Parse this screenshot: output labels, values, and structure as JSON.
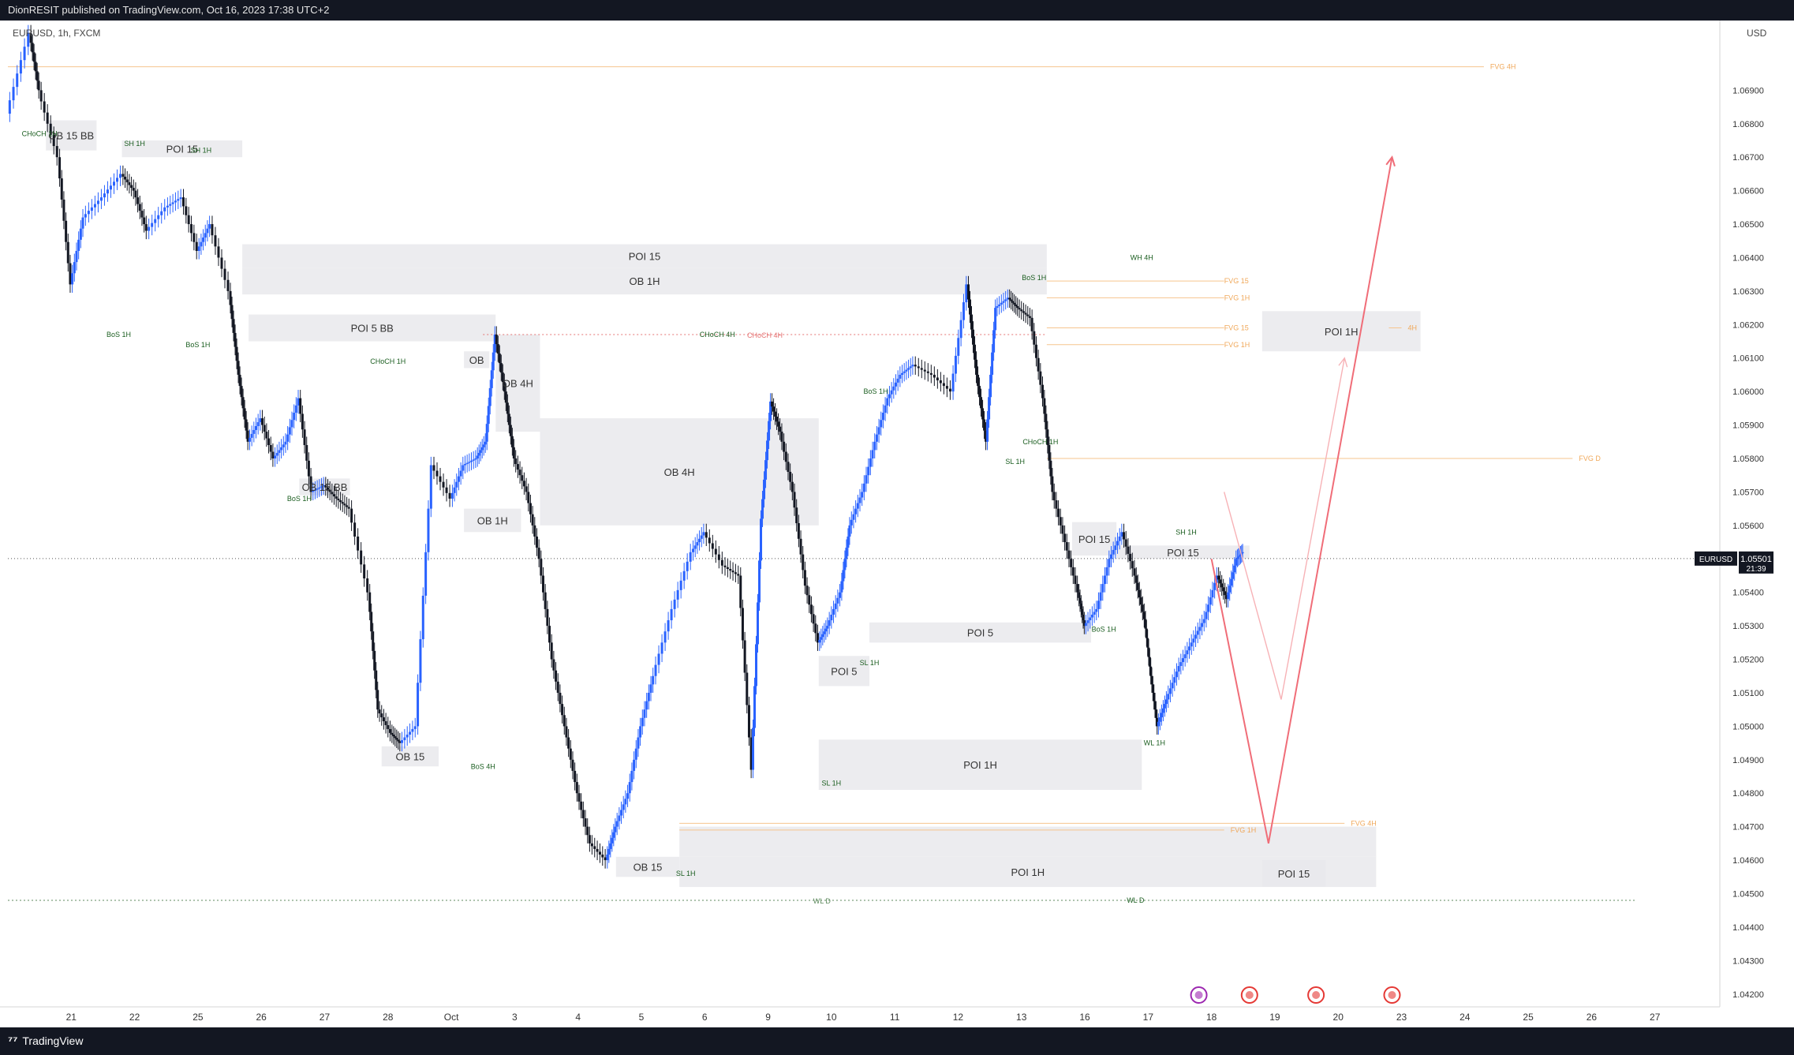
{
  "header": {
    "publish_text": "DionRESIT published on TradingView.com, Oct 16, 2023 17:38 UTC+2"
  },
  "footer": {
    "brand": "TradingView"
  },
  "chart_data": {
    "type": "candlestick",
    "symbol_label": "EURUSD, 1h, FXCM",
    "currency": "USD",
    "last_price": {
      "label": "EURUSD",
      "value": "1.05501",
      "countdown": "21:39"
    },
    "ylim": [
      1.0419,
      1.0708
    ],
    "y_ticks": [
      "1.06900",
      "1.06800",
      "1.06700",
      "1.06600",
      "1.06500",
      "1.06400",
      "1.06300",
      "1.06200",
      "1.06100",
      "1.06000",
      "1.05900",
      "1.05800",
      "1.05700",
      "1.05600",
      "1.05500",
      "1.05400",
      "1.05300",
      "1.05200",
      "1.05100",
      "1.05000",
      "1.04900",
      "1.04800",
      "1.04700",
      "1.04600",
      "1.04500",
      "1.04400",
      "1.04300",
      "1.04200"
    ],
    "xlim": [
      0,
      27
    ],
    "x_ticks": [
      {
        "i": 1,
        "label": "21"
      },
      {
        "i": 2,
        "label": "22"
      },
      {
        "i": 3,
        "label": "25"
      },
      {
        "i": 4,
        "label": "26"
      },
      {
        "i": 5,
        "label": "27"
      },
      {
        "i": 6,
        "label": "28"
      },
      {
        "i": 7,
        "label": "Oct"
      },
      {
        "i": 8,
        "label": "3"
      },
      {
        "i": 9,
        "label": "4"
      },
      {
        "i": 10,
        "label": "5"
      },
      {
        "i": 11,
        "label": "6"
      },
      {
        "i": 12,
        "label": "9"
      },
      {
        "i": 13,
        "label": "10"
      },
      {
        "i": 14,
        "label": "11"
      },
      {
        "i": 15,
        "label": "12"
      },
      {
        "i": 16,
        "label": "13"
      },
      {
        "i": 17,
        "label": "16"
      },
      {
        "i": 18,
        "label": "17"
      },
      {
        "i": 19,
        "label": "18"
      },
      {
        "i": 20,
        "label": "19"
      },
      {
        "i": 21,
        "label": "20"
      },
      {
        "i": 22,
        "label": "23"
      },
      {
        "i": 23,
        "label": "24"
      },
      {
        "i": 24,
        "label": "25"
      },
      {
        "i": 25,
        "label": "26"
      },
      {
        "i": 26,
        "label": "27"
      }
    ],
    "price_path": [
      [
        0.0,
        1.0683
      ],
      [
        0.35,
        1.0707
      ],
      [
        0.5,
        1.069
      ],
      [
        0.8,
        1.067
      ],
      [
        1.0,
        1.0632
      ],
      [
        1.2,
        1.0652
      ],
      [
        1.5,
        1.0658
      ],
      [
        1.8,
        1.0665
      ],
      [
        2.0,
        1.066
      ],
      [
        2.2,
        1.0648
      ],
      [
        2.5,
        1.0655
      ],
      [
        2.75,
        1.0658
      ],
      [
        3.0,
        1.0642
      ],
      [
        3.2,
        1.065
      ],
      [
        3.5,
        1.063
      ],
      [
        3.65,
        1.0605
      ],
      [
        3.8,
        1.0585
      ],
      [
        4.0,
        1.0592
      ],
      [
        4.2,
        1.058
      ],
      [
        4.4,
        1.0585
      ],
      [
        4.6,
        1.0598
      ],
      [
        4.8,
        1.057
      ],
      [
        5.0,
        1.0572
      ],
      [
        5.2,
        1.0568
      ],
      [
        5.4,
        1.0565
      ],
      [
        5.7,
        1.054
      ],
      [
        5.85,
        1.0505
      ],
      [
        6.05,
        1.0498
      ],
      [
        6.2,
        1.0495
      ],
      [
        6.45,
        1.05
      ],
      [
        6.7,
        1.0578
      ],
      [
        7.0,
        1.0568
      ],
      [
        7.2,
        1.0578
      ],
      [
        7.4,
        1.058
      ],
      [
        7.55,
        1.0585
      ],
      [
        7.7,
        1.0617
      ],
      [
        7.85,
        1.06
      ],
      [
        8.0,
        1.058
      ],
      [
        8.2,
        1.057
      ],
      [
        8.4,
        1.055
      ],
      [
        8.6,
        1.052
      ],
      [
        8.8,
        1.05
      ],
      [
        9.0,
        1.048
      ],
      [
        9.2,
        1.0465
      ],
      [
        9.45,
        1.046
      ],
      [
        9.6,
        1.047
      ],
      [
        9.8,
        1.048
      ],
      [
        10.0,
        1.05
      ],
      [
        10.2,
        1.0515
      ],
      [
        10.5,
        1.0535
      ],
      [
        10.8,
        1.0552
      ],
      [
        11.0,
        1.0558
      ],
      [
        11.3,
        1.0548
      ],
      [
        11.55,
        1.0545
      ],
      [
        11.75,
        1.0487
      ],
      [
        11.9,
        1.0562
      ],
      [
        12.05,
        1.0597
      ],
      [
        12.2,
        1.0588
      ],
      [
        12.4,
        1.057
      ],
      [
        12.6,
        1.0542
      ],
      [
        12.8,
        1.0525
      ],
      [
        12.95,
        1.053
      ],
      [
        13.15,
        1.054
      ],
      [
        13.3,
        1.056
      ],
      [
        13.5,
        1.057
      ],
      [
        13.7,
        1.0585
      ],
      [
        13.9,
        1.0598
      ],
      [
        14.1,
        1.0605
      ],
      [
        14.3,
        1.0608
      ],
      [
        14.6,
        1.0605
      ],
      [
        14.9,
        1.06
      ],
      [
        15.15,
        1.0632
      ],
      [
        15.3,
        1.0605
      ],
      [
        15.45,
        1.0585
      ],
      [
        15.6,
        1.0625
      ],
      [
        15.8,
        1.0628
      ],
      [
        15.95,
        1.0625
      ],
      [
        16.15,
        1.0622
      ],
      [
        16.35,
        1.0598
      ],
      [
        16.5,
        1.057
      ],
      [
        16.7,
        1.0555
      ],
      [
        16.9,
        1.054
      ],
      [
        17.0,
        1.053
      ],
      [
        17.2,
        1.0535
      ],
      [
        17.4,
        1.055
      ],
      [
        17.6,
        1.0558
      ],
      [
        17.8,
        1.0545
      ],
      [
        17.95,
        1.0532
      ],
      [
        18.05,
        1.0515
      ],
      [
        18.15,
        1.05
      ],
      [
        18.3,
        1.0508
      ],
      [
        18.5,
        1.0518
      ],
      [
        18.7,
        1.0525
      ],
      [
        18.9,
        1.0532
      ],
      [
        19.1,
        1.0545
      ],
      [
        19.25,
        1.0538
      ],
      [
        19.4,
        1.055
      ],
      [
        19.5,
        1.0552
      ]
    ],
    "zones": [
      {
        "label": "OB 15 BB",
        "x0": 0.6,
        "x1": 1.4,
        "y0": 1.0681,
        "y1": 1.0672
      },
      {
        "label": "POI 15",
        "x0": 1.8,
        "x1": 3.7,
        "y0": 1.0675,
        "y1": 1.067
      },
      {
        "label": "POI 15",
        "x0": 3.7,
        "x1": 16.4,
        "y0": 1.0644,
        "y1": 1.0637
      },
      {
        "label": "OB 1H",
        "x0": 3.7,
        "x1": 16.4,
        "y0": 1.0637,
        "y1": 1.0629
      },
      {
        "label": "POI 5 BB",
        "x0": 3.8,
        "x1": 7.7,
        "y0": 1.0623,
        "y1": 1.0615
      },
      {
        "label": "OB",
        "x0": 7.2,
        "x1": 7.6,
        "y0": 1.0612,
        "y1": 1.0607
      },
      {
        "label": "OB 4H",
        "x0": 7.7,
        "x1": 8.4,
        "y0": 1.0617,
        "y1": 1.0588
      },
      {
        "label": "OB 4H",
        "x0": 8.4,
        "x1": 12.8,
        "y0": 1.0592,
        "y1": 1.056
      },
      {
        "label": "OB 15 BB",
        "x0": 4.6,
        "x1": 5.4,
        "y0": 1.0574,
        "y1": 1.0569
      },
      {
        "label": "OB 1H",
        "x0": 7.2,
        "x1": 8.1,
        "y0": 1.0565,
        "y1": 1.0558
      },
      {
        "label": "OB 15",
        "x0": 5.9,
        "x1": 6.8,
        "y0": 1.0494,
        "y1": 1.0488
      },
      {
        "label": "POI 5",
        "x0": 12.8,
        "x1": 13.6,
        "y0": 1.0521,
        "y1": 1.0512
      },
      {
        "label": "POI 5",
        "x0": 13.6,
        "x1": 17.1,
        "y0": 1.0531,
        "y1": 1.0525
      },
      {
        "label": "POI 1H",
        "x0": 12.8,
        "x1": 17.9,
        "y0": 1.0496,
        "y1": 1.0481
      },
      {
        "label": "POI 15",
        "x0": 16.8,
        "x1": 17.5,
        "y0": 1.0561,
        "y1": 1.0551
      },
      {
        "label": "POI 15",
        "x0": 17.5,
        "x1": 19.6,
        "y0": 1.0554,
        "y1": 1.055
      },
      {
        "label": "OB 15",
        "x0": 9.6,
        "x1": 10.6,
        "y0": 1.0461,
        "y1": 1.0455
      },
      {
        "label": "",
        "x0": 10.6,
        "x1": 21.6,
        "y0": 1.047,
        "y1": 1.0461
      },
      {
        "label": "POI 1H",
        "x0": 10.6,
        "x1": 21.6,
        "y0": 1.0461,
        "y1": 1.0452
      },
      {
        "label": "POI 15",
        "x0": 19.8,
        "x1": 20.8,
        "y0": 1.046,
        "y1": 1.0452
      },
      {
        "label": "POI 1H",
        "x0": 19.8,
        "x1": 22.3,
        "y0": 1.0624,
        "y1": 1.0612
      }
    ],
    "structure_labels": [
      {
        "text": "CHoCH 1H",
        "x": 0.5,
        "y": 1.0677
      },
      {
        "text": "SH 1H",
        "x": 2.0,
        "y": 1.0674
      },
      {
        "text": "SH 1H",
        "x": 3.05,
        "y": 1.0672
      },
      {
        "text": "BoS 1H",
        "x": 1.75,
        "y": 1.0617
      },
      {
        "text": "BoS 1H",
        "x": 3.0,
        "y": 1.0614
      },
      {
        "text": "CHoCH 1H",
        "x": 6.0,
        "y": 1.0609
      },
      {
        "text": "BoS 1H",
        "x": 4.6,
        "y": 1.0568
      },
      {
        "text": "BoS 4H",
        "x": 7.5,
        "y": 1.0488
      },
      {
        "text": "CHoCH 4H",
        "x": 11.2,
        "y": 1.0617
      },
      {
        "text": "BoS 1H",
        "x": 13.7,
        "y": 1.06
      },
      {
        "text": "SL 1H",
        "x": 13.0,
        "y": 1.0483
      },
      {
        "text": "SL 1H",
        "x": 13.6,
        "y": 1.0519
      },
      {
        "text": "BoS 1H",
        "x": 16.2,
        "y": 1.0634
      },
      {
        "text": "WH 4H",
        "x": 17.9,
        "y": 1.064
      },
      {
        "text": "CHoCH 1H",
        "x": 16.3,
        "y": 1.0585
      },
      {
        "text": "SL 1H",
        "x": 15.9,
        "y": 1.0579
      },
      {
        "text": "SH 1H",
        "x": 18.6,
        "y": 1.0558
      },
      {
        "text": "BoS 1H",
        "x": 17.3,
        "y": 1.0529
      },
      {
        "text": "WL 1H",
        "x": 18.1,
        "y": 1.0495
      },
      {
        "text": "SL 1H",
        "x": 10.7,
        "y": 1.0456
      },
      {
        "text": "WL D",
        "x": 17.8,
        "y": 1.0448
      }
    ],
    "fvg_labels": [
      {
        "text": "FVG 4H",
        "x": 23.4,
        "y": 1.0697,
        "line_x0": 0.0,
        "line_x1": 23.3
      },
      {
        "text": "FVG 15",
        "x": 19.2,
        "y": 1.0633,
        "line_x0": 16.4,
        "line_x1": 19.2
      },
      {
        "text": "FVG 1H",
        "x": 19.2,
        "y": 1.0628,
        "line_x0": 16.4,
        "line_x1": 19.2
      },
      {
        "text": "FVG 15",
        "x": 19.2,
        "y": 1.0619,
        "line_x0": 16.4,
        "line_x1": 19.2
      },
      {
        "text": "FVG 1H",
        "x": 19.2,
        "y": 1.0614,
        "line_x0": 16.4,
        "line_x1": 19.2
      },
      {
        "text": "FVG D",
        "x": 24.8,
        "y": 1.058,
        "line_x0": 16.4,
        "line_x1": 24.7
      },
      {
        "text": "FVG 1H",
        "x": 19.3,
        "y": 1.0469,
        "line_x0": 10.6,
        "line_x1": 19.2
      },
      {
        "text": "FVG 4H",
        "x": 21.2,
        "y": 1.0471,
        "line_x0": 10.6,
        "line_x1": 21.1
      },
      {
        "text": "4H",
        "x": 22.1,
        "y": 1.0619,
        "line_x0": 21.8,
        "line_x1": 22.0
      }
    ],
    "levels": [
      {
        "label": "CHoCH 4H",
        "y": 1.0617,
        "x0": 7.5,
        "x1": 16.4,
        "color": "#e57373"
      },
      {
        "label": "WL D",
        "y": 1.0448,
        "x0": 0.0,
        "x1": 25.7,
        "color": "#5d8a5d"
      }
    ],
    "projections": [
      {
        "name": "primary",
        "color": "#f06d78",
        "points": [
          [
            19.0,
            1.055
          ],
          [
            19.9,
            1.0465
          ],
          [
            21.85,
            1.067
          ]
        ]
      },
      {
        "name": "alternate",
        "color": "#f7b2b6",
        "points": [
          [
            19.2,
            1.057
          ],
          [
            20.1,
            1.0508
          ],
          [
            21.1,
            1.061
          ]
        ]
      }
    ],
    "event_markers": [
      {
        "icon": "lightning-icon",
        "x": 18.8,
        "color": "#9c27b0"
      },
      {
        "icon": "eu-flag-icon",
        "x": 19.6,
        "color": "#e53935"
      },
      {
        "icon": "us-flag-icon",
        "x": 20.65,
        "color": "#e53935"
      },
      {
        "icon": "us-flag-icon",
        "x": 21.85,
        "color": "#e53935"
      }
    ],
    "colors": {
      "up": "#2962ff",
      "down": "#131722",
      "zone": "#e9e9ec",
      "zone_blue": "#bbd3f5",
      "structure_text": "#1b5e20",
      "fvg_text": "#f0a85a",
      "price_badge": "#131722"
    }
  }
}
